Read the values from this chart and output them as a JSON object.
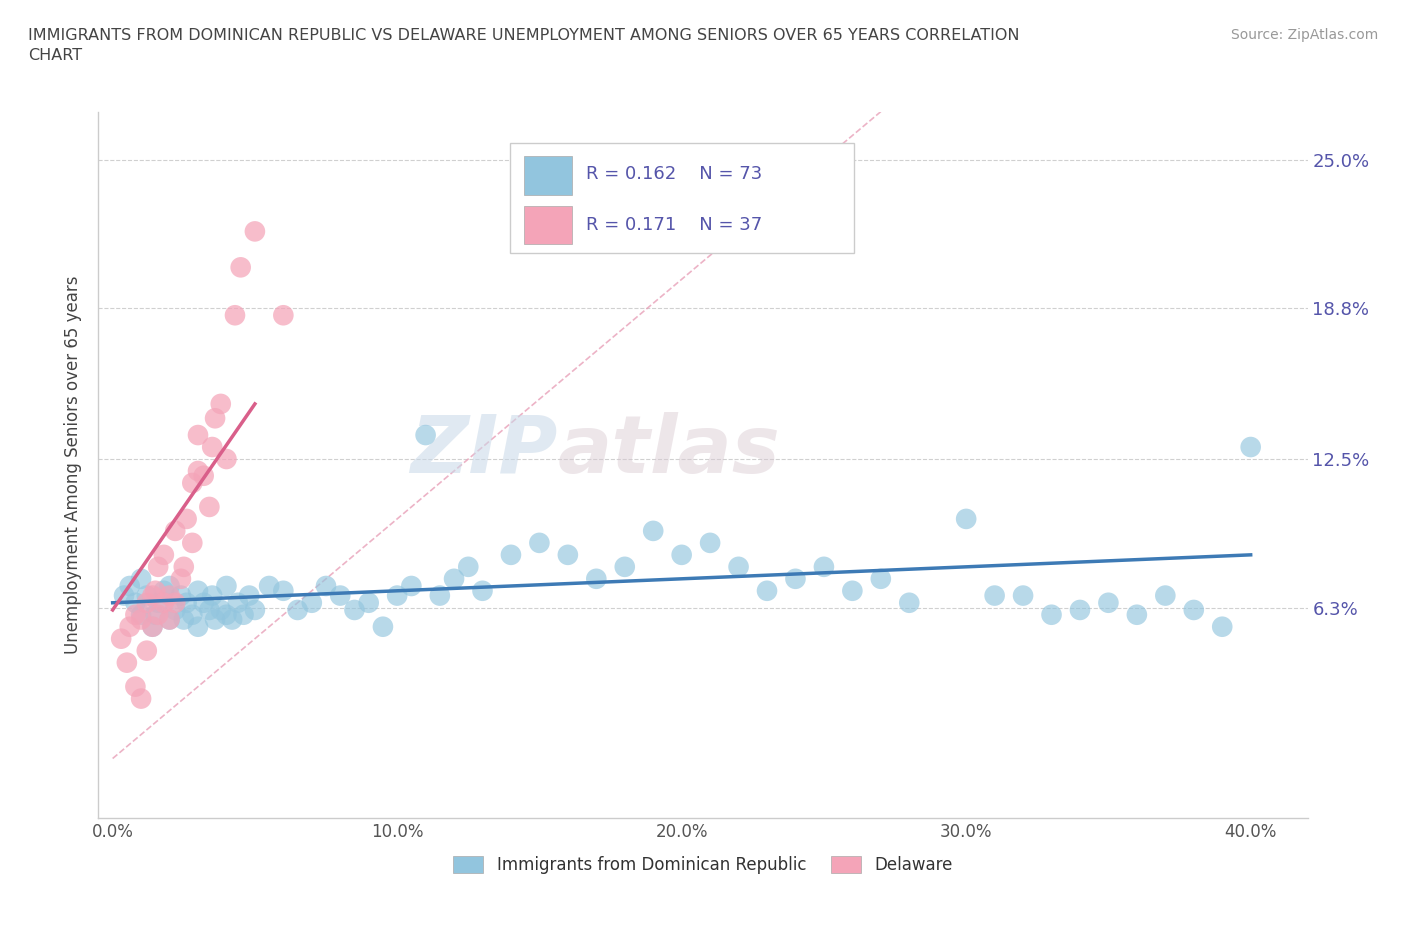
{
  "title": "IMMIGRANTS FROM DOMINICAN REPUBLIC VS DELAWARE UNEMPLOYMENT AMONG SENIORS OVER 65 YEARS CORRELATION\nCHART",
  "source": "Source: ZipAtlas.com",
  "ylabel": "Unemployment Among Seniors over 65 years",
  "x_ticks": [
    0.0,
    0.1,
    0.2,
    0.3,
    0.4
  ],
  "x_tick_labels": [
    "0.0%",
    "10.0%",
    "20.0%",
    "30.0%",
    "40.0%"
  ],
  "y_ticks": [
    0.0,
    0.063,
    0.125,
    0.188,
    0.25
  ],
  "y_tick_labels_right": [
    "",
    "6.3%",
    "12.5%",
    "18.8%",
    "25.0%"
  ],
  "xlim": [
    -0.005,
    0.42
  ],
  "ylim": [
    -0.025,
    0.27
  ],
  "legend1_label": "Immigrants from Dominican Republic",
  "legend2_label": "Delaware",
  "R1": "0.162",
  "N1": "73",
  "R2": "0.171",
  "N2": "37",
  "color_blue": "#92c5de",
  "color_pink": "#f4a4b8",
  "line_blue": "#3d7ab5",
  "line_pink": "#d95f8a",
  "diag_color": "#e8a0b8",
  "blue_scatter_x": [
    0.004,
    0.006,
    0.008,
    0.01,
    0.01,
    0.012,
    0.014,
    0.015,
    0.016,
    0.018,
    0.02,
    0.02,
    0.022,
    0.024,
    0.025,
    0.026,
    0.028,
    0.03,
    0.03,
    0.032,
    0.034,
    0.035,
    0.036,
    0.038,
    0.04,
    0.04,
    0.042,
    0.044,
    0.046,
    0.048,
    0.05,
    0.055,
    0.06,
    0.065,
    0.07,
    0.075,
    0.08,
    0.085,
    0.09,
    0.095,
    0.1,
    0.105,
    0.11,
    0.115,
    0.12,
    0.125,
    0.13,
    0.14,
    0.15,
    0.16,
    0.17,
    0.18,
    0.19,
    0.2,
    0.21,
    0.22,
    0.23,
    0.24,
    0.25,
    0.26,
    0.27,
    0.28,
    0.3,
    0.32,
    0.34,
    0.35,
    0.36,
    0.37,
    0.38,
    0.39,
    0.4,
    0.31,
    0.33
  ],
  "blue_scatter_y": [
    0.068,
    0.072,
    0.065,
    0.06,
    0.075,
    0.068,
    0.055,
    0.06,
    0.065,
    0.07,
    0.058,
    0.072,
    0.062,
    0.068,
    0.058,
    0.065,
    0.06,
    0.07,
    0.055,
    0.065,
    0.062,
    0.068,
    0.058,
    0.062,
    0.06,
    0.072,
    0.058,
    0.065,
    0.06,
    0.068,
    0.062,
    0.072,
    0.07,
    0.062,
    0.065,
    0.072,
    0.068,
    0.062,
    0.065,
    0.055,
    0.068,
    0.072,
    0.135,
    0.068,
    0.075,
    0.08,
    0.07,
    0.085,
    0.09,
    0.085,
    0.075,
    0.08,
    0.095,
    0.085,
    0.09,
    0.08,
    0.07,
    0.075,
    0.08,
    0.07,
    0.075,
    0.065,
    0.1,
    0.068,
    0.062,
    0.065,
    0.06,
    0.068,
    0.062,
    0.055,
    0.13,
    0.068,
    0.06
  ],
  "pink_scatter_x": [
    0.003,
    0.005,
    0.006,
    0.008,
    0.008,
    0.01,
    0.01,
    0.012,
    0.012,
    0.014,
    0.014,
    0.015,
    0.016,
    0.016,
    0.018,
    0.018,
    0.02,
    0.02,
    0.022,
    0.022,
    0.024,
    0.025,
    0.026,
    0.028,
    0.028,
    0.03,
    0.03,
    0.032,
    0.034,
    0.035,
    0.036,
    0.038,
    0.04,
    0.043,
    0.045,
    0.05,
    0.06
  ],
  "pink_scatter_y": [
    0.05,
    0.04,
    0.055,
    0.06,
    0.03,
    0.058,
    0.025,
    0.065,
    0.045,
    0.068,
    0.055,
    0.07,
    0.06,
    0.08,
    0.065,
    0.085,
    0.058,
    0.068,
    0.065,
    0.095,
    0.075,
    0.08,
    0.1,
    0.09,
    0.115,
    0.12,
    0.135,
    0.118,
    0.105,
    0.13,
    0.142,
    0.148,
    0.125,
    0.185,
    0.205,
    0.22,
    0.185
  ],
  "blue_line_x": [
    0.0,
    0.4
  ],
  "blue_line_y": [
    0.065,
    0.085
  ],
  "pink_line_x": [
    0.0,
    0.05
  ],
  "pink_line_y": [
    0.062,
    0.148
  ],
  "diag_line_x": [
    0.0,
    0.27
  ],
  "diag_line_y": [
    0.0,
    0.27
  ],
  "watermark_zip": "ZIP",
  "watermark_atlas": "atlas",
  "background_color": "#ffffff",
  "grid_color": "#d0d0d0",
  "title_color": "#444444",
  "axis_color": "#5555aa",
  "label_color": "#444444"
}
